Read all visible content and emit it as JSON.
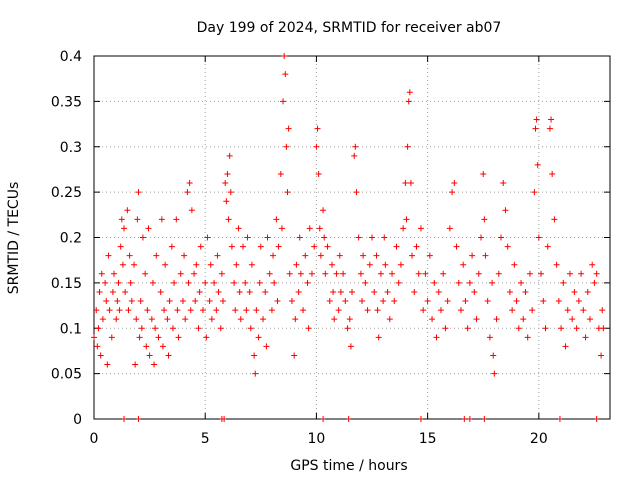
{
  "chart_data": {
    "type": "scatter",
    "title": "Day 199 of 2024, SRMTID for receiver ab07",
    "xlabel": "GPS time / hours",
    "ylabel": "SRMTID / TECUs",
    "xlim": [
      0,
      23.2
    ],
    "ylim": [
      0,
      0.4
    ],
    "x_ticks": [
      0,
      5,
      10,
      15,
      20
    ],
    "x_tick_labels": [
      "0",
      "5",
      "10",
      "15",
      "20"
    ],
    "y_ticks": [
      0,
      0.05,
      0.1,
      0.15,
      0.2,
      0.25,
      0.3,
      0.35,
      0.4
    ],
    "y_tick_labels": [
      "0",
      "0.05",
      "0.1",
      "0.15",
      "0.2",
      "0.25",
      "0.3",
      "0.35",
      "0.4"
    ],
    "grid": true,
    "marker": "+",
    "color": "#ff0000",
    "series": [
      {
        "name": "SRMTID",
        "points": [
          [
            0.0,
            0.09
          ],
          [
            0.1,
            0.12
          ],
          [
            0.15,
            0.08
          ],
          [
            0.2,
            0.1
          ],
          [
            0.25,
            0.14
          ],
          [
            0.3,
            0.07
          ],
          [
            0.35,
            0.16
          ],
          [
            0.4,
            0.11
          ],
          [
            0.5,
            0.15
          ],
          [
            0.55,
            0.13
          ],
          [
            0.6,
            0.06
          ],
          [
            0.65,
            0.18
          ],
          [
            0.7,
            0.12
          ],
          [
            0.8,
            0.09
          ],
          [
            0.85,
            0.14
          ],
          [
            0.9,
            0.16
          ],
          [
            1.0,
            0.11
          ],
          [
            1.05,
            0.13
          ],
          [
            1.1,
            0.15
          ],
          [
            1.15,
            0.12
          ],
          [
            1.2,
            0.19
          ],
          [
            1.25,
            0.22
          ],
          [
            1.3,
            0.17
          ],
          [
            1.35,
            0.21
          ],
          [
            1.4,
            0.14
          ],
          [
            1.5,
            0.23
          ],
          [
            1.55,
            0.12
          ],
          [
            1.6,
            0.18
          ],
          [
            1.65,
            0.15
          ],
          [
            1.7,
            0.13
          ],
          [
            1.8,
            0.17
          ],
          [
            1.85,
            0.06
          ],
          [
            1.9,
            0.11
          ],
          [
            1.95,
            0.22
          ],
          [
            2.0,
            0.25
          ],
          [
            2.05,
            0.09
          ],
          [
            2.1,
            0.13
          ],
          [
            2.15,
            0.1
          ],
          [
            2.2,
            0.2
          ],
          [
            2.3,
            0.16
          ],
          [
            2.35,
            0.08
          ],
          [
            2.4,
            0.12
          ],
          [
            2.45,
            0.21
          ],
          [
            2.5,
            0.07
          ],
          [
            2.6,
            0.11
          ],
          [
            2.65,
            0.15
          ],
          [
            2.7,
            0.06
          ],
          [
            2.75,
            0.1
          ],
          [
            2.8,
            0.18
          ],
          [
            2.9,
            0.09
          ],
          [
            3.0,
            0.14
          ],
          [
            3.05,
            0.22
          ],
          [
            3.1,
            0.08
          ],
          [
            3.15,
            0.12
          ],
          [
            3.2,
            0.17
          ],
          [
            3.3,
            0.11
          ],
          [
            3.35,
            0.07
          ],
          [
            3.4,
            0.13
          ],
          [
            3.5,
            0.19
          ],
          [
            3.55,
            0.1
          ],
          [
            3.6,
            0.15
          ],
          [
            3.7,
            0.22
          ],
          [
            3.75,
            0.12
          ],
          [
            3.8,
            0.09
          ],
          [
            3.9,
            0.16
          ],
          [
            4.0,
            0.13
          ],
          [
            4.05,
            0.18
          ],
          [
            4.1,
            0.11
          ],
          [
            4.2,
            0.25
          ],
          [
            4.25,
            0.15
          ],
          [
            4.3,
            0.26
          ],
          [
            4.35,
            0.12
          ],
          [
            4.4,
            0.23
          ],
          [
            4.5,
            0.16
          ],
          [
            4.55,
            0.13
          ],
          [
            4.6,
            0.17
          ],
          [
            4.7,
            0.1
          ],
          [
            4.75,
            0.14
          ],
          [
            4.8,
            0.19
          ],
          [
            4.9,
            0.12
          ],
          [
            5.0,
            0.15
          ],
          [
            5.05,
            0.09
          ],
          [
            5.1,
            0.2
          ],
          [
            5.2,
            0.13
          ],
          [
            5.25,
            0.17
          ],
          [
            5.3,
            0.11
          ],
          [
            5.4,
            0.15
          ],
          [
            5.5,
            0.12
          ],
          [
            5.55,
            0.18
          ],
          [
            5.6,
            0.14
          ],
          [
            5.7,
            0.1
          ],
          [
            5.75,
            0.16
          ],
          [
            5.8,
            0.13
          ],
          [
            5.9,
            0.26
          ],
          [
            5.95,
            0.24
          ],
          [
            6.0,
            0.27
          ],
          [
            6.05,
            0.22
          ],
          [
            6.1,
            0.29
          ],
          [
            6.15,
            0.25
          ],
          [
            6.2,
            0.19
          ],
          [
            6.3,
            0.15
          ],
          [
            6.35,
            0.12
          ],
          [
            6.4,
            0.17
          ],
          [
            6.5,
            0.21
          ],
          [
            6.55,
            0.14
          ],
          [
            6.6,
            0.11
          ],
          [
            6.7,
            0.19
          ],
          [
            6.8,
            0.15
          ],
          [
            6.85,
            0.12
          ],
          [
            6.9,
            0.2
          ],
          [
            7.0,
            0.14
          ],
          [
            7.05,
            0.1
          ],
          [
            7.1,
            0.17
          ],
          [
            7.2,
            0.07
          ],
          [
            7.25,
            0.05
          ],
          [
            7.3,
            0.12
          ],
          [
            7.4,
            0.09
          ],
          [
            7.45,
            0.15
          ],
          [
            7.5,
            0.19
          ],
          [
            7.6,
            0.11
          ],
          [
            7.7,
            0.14
          ],
          [
            7.75,
            0.08
          ],
          [
            7.8,
            0.2
          ],
          [
            7.9,
            0.16
          ],
          [
            8.0,
            0.12
          ],
          [
            8.05,
            0.18
          ],
          [
            8.1,
            0.15
          ],
          [
            8.2,
            0.22
          ],
          [
            8.25,
            0.13
          ],
          [
            8.3,
            0.19
          ],
          [
            8.4,
            0.27
          ],
          [
            8.45,
            0.21
          ],
          [
            8.5,
            0.35
          ],
          [
            8.55,
            0.4
          ],
          [
            8.6,
            0.38
          ],
          [
            8.65,
            0.3
          ],
          [
            8.7,
            0.25
          ],
          [
            8.75,
            0.32
          ],
          [
            8.8,
            0.16
          ],
          [
            8.9,
            0.13
          ],
          [
            9.0,
            0.07
          ],
          [
            9.05,
            0.11
          ],
          [
            9.1,
            0.17
          ],
          [
            9.2,
            0.14
          ],
          [
            9.25,
            0.2
          ],
          [
            9.3,
            0.16
          ],
          [
            9.4,
            0.12
          ],
          [
            9.5,
            0.18
          ],
          [
            9.6,
            0.15
          ],
          [
            9.65,
            0.1
          ],
          [
            9.7,
            0.21
          ],
          [
            9.8,
            0.16
          ],
          [
            9.9,
            0.19
          ],
          [
            10.0,
            0.3
          ],
          [
            10.05,
            0.32
          ],
          [
            10.1,
            0.27
          ],
          [
            10.15,
            0.21
          ],
          [
            10.2,
            0.18
          ],
          [
            10.3,
            0.23
          ],
          [
            10.35,
            0.2
          ],
          [
            10.4,
            0.16
          ],
          [
            10.5,
            0.19
          ],
          [
            10.6,
            0.13
          ],
          [
            10.7,
            0.17
          ],
          [
            10.75,
            0.14
          ],
          [
            10.8,
            0.11
          ],
          [
            10.9,
            0.16
          ],
          [
            11.0,
            0.12
          ],
          [
            11.05,
            0.18
          ],
          [
            11.1,
            0.14
          ],
          [
            11.2,
            0.16
          ],
          [
            11.3,
            0.13
          ],
          [
            11.4,
            0.1
          ],
          [
            11.5,
            0.11
          ],
          [
            11.55,
            0.08
          ],
          [
            11.6,
            0.14
          ],
          [
            11.7,
            0.29
          ],
          [
            11.75,
            0.3
          ],
          [
            11.8,
            0.25
          ],
          [
            11.9,
            0.2
          ],
          [
            12.0,
            0.16
          ],
          [
            12.05,
            0.13
          ],
          [
            12.1,
            0.18
          ],
          [
            12.2,
            0.15
          ],
          [
            12.3,
            0.12
          ],
          [
            12.4,
            0.17
          ],
          [
            12.5,
            0.2
          ],
          [
            12.6,
            0.14
          ],
          [
            12.7,
            0.18
          ],
          [
            12.75,
            0.12
          ],
          [
            12.8,
            0.09
          ],
          [
            12.9,
            0.16
          ],
          [
            13.0,
            0.13
          ],
          [
            13.05,
            0.2
          ],
          [
            13.1,
            0.17
          ],
          [
            13.2,
            0.14
          ],
          [
            13.3,
            0.11
          ],
          [
            13.4,
            0.16
          ],
          [
            13.5,
            0.13
          ],
          [
            13.6,
            0.19
          ],
          [
            13.7,
            0.15
          ],
          [
            13.8,
            0.17
          ],
          [
            13.9,
            0.21
          ],
          [
            14.0,
            0.26
          ],
          [
            14.05,
            0.22
          ],
          [
            14.1,
            0.3
          ],
          [
            14.15,
            0.35
          ],
          [
            14.2,
            0.36
          ],
          [
            14.25,
            0.26
          ],
          [
            14.3,
            0.18
          ],
          [
            14.4,
            0.14
          ],
          [
            14.5,
            0.19
          ],
          [
            14.6,
            0.16
          ],
          [
            14.7,
            0.21
          ],
          [
            14.8,
            0.12
          ],
          [
            14.9,
            0.16
          ],
          [
            15.0,
            0.13
          ],
          [
            15.1,
            0.18
          ],
          [
            15.2,
            0.11
          ],
          [
            15.3,
            0.15
          ],
          [
            15.4,
            0.09
          ],
          [
            15.5,
            0.14
          ],
          [
            15.6,
            0.12
          ],
          [
            15.7,
            0.16
          ],
          [
            15.8,
            0.1
          ],
          [
            15.9,
            0.13
          ],
          [
            16.0,
            0.21
          ],
          [
            16.1,
            0.25
          ],
          [
            16.2,
            0.26
          ],
          [
            16.3,
            0.19
          ],
          [
            16.4,
            0.15
          ],
          [
            16.5,
            0.12
          ],
          [
            16.6,
            0.17
          ],
          [
            16.7,
            0.13
          ],
          [
            16.8,
            0.1
          ],
          [
            16.9,
            0.15
          ],
          [
            17.0,
            0.18
          ],
          [
            17.1,
            0.14
          ],
          [
            17.2,
            0.11
          ],
          [
            17.3,
            0.16
          ],
          [
            17.4,
            0.2
          ],
          [
            17.5,
            0.27
          ],
          [
            17.55,
            0.22
          ],
          [
            17.6,
            0.18
          ],
          [
            17.7,
            0.13
          ],
          [
            17.8,
            0.09
          ],
          [
            17.9,
            0.15
          ],
          [
            17.95,
            0.07
          ],
          [
            18.0,
            0.05
          ],
          [
            18.1,
            0.11
          ],
          [
            18.2,
            0.16
          ],
          [
            18.3,
            0.2
          ],
          [
            18.4,
            0.26
          ],
          [
            18.5,
            0.23
          ],
          [
            18.6,
            0.19
          ],
          [
            18.7,
            0.14
          ],
          [
            18.8,
            0.12
          ],
          [
            18.9,
            0.17
          ],
          [
            19.0,
            0.13
          ],
          [
            19.1,
            0.1
          ],
          [
            19.2,
            0.15
          ],
          [
            19.3,
            0.11
          ],
          [
            19.4,
            0.14
          ],
          [
            19.5,
            0.09
          ],
          [
            19.6,
            0.16
          ],
          [
            19.7,
            0.12
          ],
          [
            19.8,
            0.25
          ],
          [
            19.85,
            0.32
          ],
          [
            19.9,
            0.33
          ],
          [
            19.95,
            0.28
          ],
          [
            20.0,
            0.2
          ],
          [
            20.1,
            0.16
          ],
          [
            20.2,
            0.13
          ],
          [
            20.3,
            0.1
          ],
          [
            20.4,
            0.19
          ],
          [
            20.5,
            0.32
          ],
          [
            20.55,
            0.33
          ],
          [
            20.6,
            0.27
          ],
          [
            20.7,
            0.22
          ],
          [
            20.8,
            0.17
          ],
          [
            20.9,
            0.13
          ],
          [
            21.0,
            0.1
          ],
          [
            21.1,
            0.15
          ],
          [
            21.2,
            0.08
          ],
          [
            21.3,
            0.12
          ],
          [
            21.4,
            0.16
          ],
          [
            21.5,
            0.11
          ],
          [
            21.6,
            0.14
          ],
          [
            21.7,
            0.1
          ],
          [
            21.8,
            0.13
          ],
          [
            21.9,
            0.16
          ],
          [
            22.0,
            0.12
          ],
          [
            22.1,
            0.09
          ],
          [
            22.2,
            0.14
          ],
          [
            22.3,
            0.11
          ],
          [
            22.4,
            0.17
          ],
          [
            22.5,
            0.15
          ],
          [
            22.6,
            0.16
          ],
          [
            22.7,
            0.1
          ],
          [
            22.8,
            0.07
          ],
          [
            22.85,
            0.12
          ],
          [
            22.9,
            0.1
          ]
        ]
      }
    ],
    "zero_markers_x": [
      1.35,
      2.0,
      5.75,
      5.85,
      10.3,
      11.45,
      14.7,
      16.65,
      16.9,
      17.55,
      20.95,
      22.6
    ]
  }
}
